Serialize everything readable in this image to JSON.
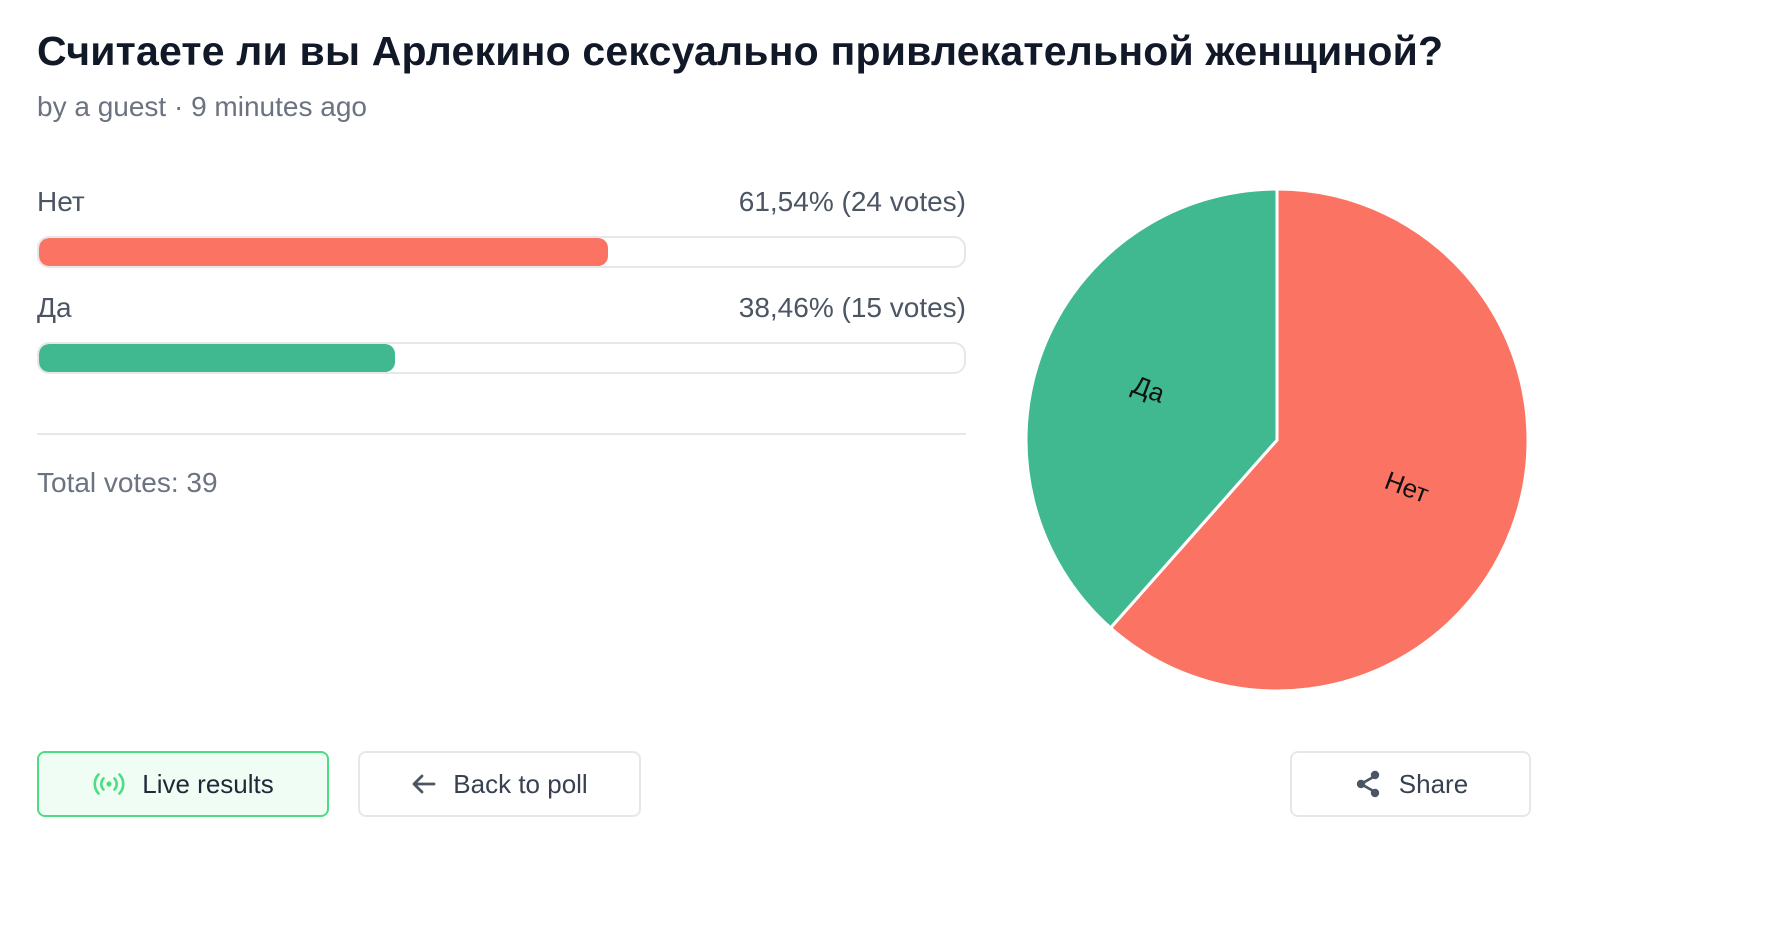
{
  "poll": {
    "title": "Считаете ли вы Арлекино сексуально привлекательной женщиной?",
    "byline": "by a guest · 9 minutes ago",
    "total_label": "Total votes: 39"
  },
  "options": [
    {
      "label": "Нет",
      "stat": "61,54% (24 votes)",
      "percent": 61.54,
      "votes": 24,
      "color": "#fb7463"
    },
    {
      "label": "Да",
      "stat": "38,46% (15 votes)",
      "percent": 38.46,
      "votes": 15,
      "color": "#40b991"
    }
  ],
  "chart_data": {
    "type": "pie",
    "categories": [
      "Нет",
      "Да"
    ],
    "values": [
      24,
      15
    ],
    "colors": [
      "#fb7463",
      "#40b991"
    ]
  },
  "buttons": {
    "live": "Live results",
    "back": "Back to poll",
    "share": "Share"
  },
  "icons": {
    "live": "broadcast-icon",
    "back": "arrow-left-icon",
    "share": "share-icon"
  }
}
